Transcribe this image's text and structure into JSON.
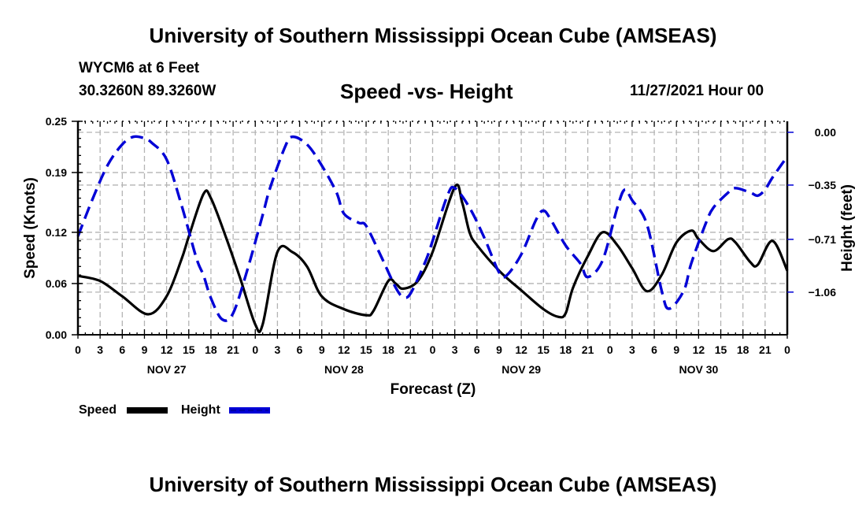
{
  "header": {
    "title": "University of Southern Mississippi Ocean Cube (AMSEAS)",
    "station": "WYCM6 at 6 Feet",
    "coordinates": "30.3260N  89.3260W",
    "subtitle": "Speed -vs- Height",
    "datetime": "11/27/2021 Hour 00"
  },
  "footer": {
    "title": "University of Southern Mississippi Ocean Cube (AMSEAS)"
  },
  "chart_data": {
    "type": "line",
    "title": "Speed -vs- Height",
    "xlabel": "Forecast (Z)",
    "ylabel": "Speed (Knots)",
    "y2label": "Height (feet)",
    "xlim": [
      0,
      96
    ],
    "ylim": [
      0.0,
      0.25
    ],
    "y2lim": [
      -1.343,
      0.073
    ],
    "x_tick_hours": [
      0,
      3,
      6,
      9,
      12,
      15,
      18,
      21,
      24,
      27,
      30,
      33,
      36,
      39,
      42,
      45,
      48,
      51,
      54,
      57,
      60,
      63,
      66,
      69,
      72,
      75,
      78,
      81,
      84,
      87,
      90,
      93,
      96
    ],
    "x_tick_labels": [
      "0",
      "3",
      "6",
      "9",
      "12",
      "15",
      "18",
      "21",
      "0",
      "3",
      "6",
      "9",
      "12",
      "15",
      "18",
      "21",
      "0",
      "3",
      "6",
      "9",
      "12",
      "15",
      "18",
      "21",
      "0",
      "3",
      "6",
      "9",
      "12",
      "15",
      "18",
      "21",
      "0"
    ],
    "day_labels": [
      {
        "label": "NOV 27",
        "hour": 12
      },
      {
        "label": "NOV 28",
        "hour": 36
      },
      {
        "label": "NOV 29",
        "hour": 60
      },
      {
        "label": "NOV 30",
        "hour": 84
      }
    ],
    "y_ticks": [
      0.0,
      0.06,
      0.12,
      0.19,
      0.25
    ],
    "y_tick_labels": [
      "0.00",
      "0.06",
      "0.12",
      "0.19",
      "0.25"
    ],
    "y2_ticks": [
      0.0,
      -0.35,
      -0.71,
      -1.06
    ],
    "y2_tick_labels": [
      "0.00",
      "−0.35",
      "−0.71",
      "−1.06"
    ],
    "grid": true,
    "legend": "bottom-left",
    "series": [
      {
        "name": "Speed",
        "axis": "left",
        "color": "#000000",
        "style": "solid",
        "x": [
          0,
          3,
          6,
          9.5,
          12,
          14,
          15,
          17,
          18,
          20,
          22,
          24,
          25,
          27,
          29,
          31,
          33,
          36,
          39,
          40,
          42,
          43,
          44,
          46,
          48,
          51,
          52,
          53,
          54,
          57,
          60,
          63,
          65,
          66,
          67,
          69,
          71,
          73,
          75,
          77,
          79,
          81,
          83,
          84,
          86,
          88,
          89,
          91,
          92,
          94,
          96
        ],
        "values": [
          0.069,
          0.063,
          0.045,
          0.024,
          0.045,
          0.088,
          0.115,
          0.165,
          0.16,
          0.115,
          0.065,
          0.012,
          0.012,
          0.097,
          0.097,
          0.08,
          0.045,
          0.03,
          0.023,
          0.028,
          0.063,
          0.06,
          0.054,
          0.063,
          0.097,
          0.173,
          0.155,
          0.12,
          0.105,
          0.075,
          0.052,
          0.03,
          0.021,
          0.025,
          0.055,
          0.092,
          0.12,
          0.105,
          0.078,
          0.051,
          0.07,
          0.108,
          0.122,
          0.112,
          0.098,
          0.112,
          0.108,
          0.085,
          0.082,
          0.11,
          0.075
        ]
      },
      {
        "name": "Height",
        "axis": "right",
        "color": "#0000d6",
        "style": "dashed",
        "x": [
          0,
          2,
          4,
          6,
          7.5,
          9,
          10,
          12,
          14,
          16,
          17,
          18,
          19.5,
          21,
          23,
          25,
          26,
          28,
          29,
          31,
          33,
          35,
          36,
          38,
          39,
          41,
          43,
          44,
          45,
          47,
          48,
          50,
          51,
          53,
          55,
          57,
          58,
          60,
          62,
          63,
          64,
          66,
          68,
          69,
          71,
          73,
          74,
          75,
          77,
          79,
          80,
          82,
          83,
          85,
          86,
          88,
          89,
          91,
          92,
          93,
          94,
          96
        ],
        "values": [
          -0.69,
          -0.44,
          -0.22,
          -0.08,
          -0.03,
          -0.04,
          -0.07,
          -0.18,
          -0.48,
          -0.83,
          -0.95,
          -1.1,
          -1.24,
          -1.2,
          -0.9,
          -0.55,
          -0.37,
          -0.1,
          -0.03,
          -0.08,
          -0.22,
          -0.4,
          -0.54,
          -0.6,
          -0.62,
          -0.82,
          -1.03,
          -1.09,
          -1.07,
          -0.86,
          -0.72,
          -0.42,
          -0.37,
          -0.5,
          -0.7,
          -0.93,
          -0.95,
          -0.81,
          -0.58,
          -0.52,
          -0.58,
          -0.75,
          -0.87,
          -0.96,
          -0.85,
          -0.5,
          -0.38,
          -0.45,
          -0.61,
          -1.05,
          -1.17,
          -1.05,
          -0.87,
          -0.6,
          -0.5,
          -0.4,
          -0.37,
          -0.4,
          -0.42,
          -0.38,
          -0.3,
          -0.16
        ]
      }
    ]
  },
  "legend": {
    "speed_label": "Speed",
    "height_label": "Height"
  }
}
